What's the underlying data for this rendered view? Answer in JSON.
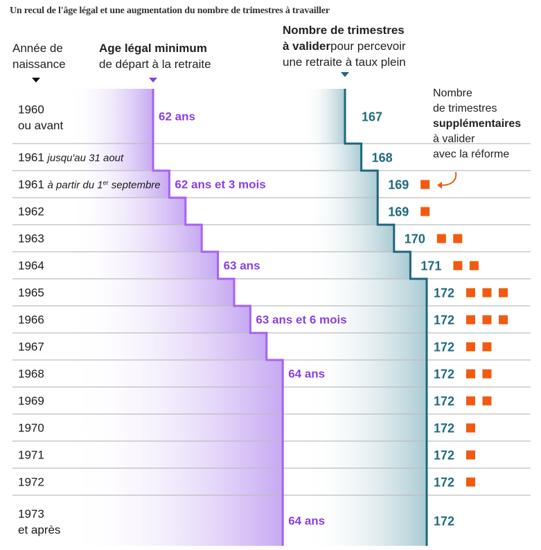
{
  "title": "Un recul de l'âge légal et une augmentation du nombre de trimestres à travailler",
  "headers": {
    "year": [
      "Année de",
      "naissance"
    ],
    "age_bold": "Age légal minimum",
    "age_rest": "de départ à la retraite",
    "trim_bold_1": "Nombre de trimestres",
    "trim_bold_2": "à valider",
    "trim_rest_1": "pour percevoir",
    "trim_rest_2": "une retraite à taux plein"
  },
  "note": {
    "line1": "Nombre",
    "line2": "de trimestres",
    "line3_bold": "supplémentaires",
    "line4": "à valider",
    "line5": "avec la réforme"
  },
  "colors": {
    "purple": "#a862ef",
    "purple_text": "#8b3fe0",
    "teal": "#1d6680",
    "teal_text": "#1e6a80",
    "orange": "#f25a0f",
    "grid": "#bdbdbd"
  },
  "chart_data": {
    "type": "table",
    "rows": [
      {
        "year": "1960",
        "year_note": "ou avant",
        "note_italic": false,
        "age_months": 744,
        "age_label": "62 ans",
        "trimestres": 167,
        "extra": 0
      },
      {
        "year": "1961",
        "year_note": "jusqu'au 31 aout",
        "note_italic": true,
        "age_months": 744,
        "age_label": "",
        "trimestres": 168,
        "extra": 0
      },
      {
        "year": "1961",
        "year_note": "à partir du 1er septembre",
        "note_italic": true,
        "age_months": 747,
        "age_label": "62 ans et 3 mois",
        "trimestres": 169,
        "extra": 1
      },
      {
        "year": "1962",
        "year_note": "",
        "note_italic": false,
        "age_months": 750,
        "age_label": "",
        "trimestres": 169,
        "extra": 1
      },
      {
        "year": "1963",
        "year_note": "",
        "note_italic": false,
        "age_months": 753,
        "age_label": "",
        "trimestres": 170,
        "extra": 2
      },
      {
        "year": "1964",
        "year_note": "",
        "note_italic": false,
        "age_months": 756,
        "age_label": "63 ans",
        "trimestres": 171,
        "extra": 2
      },
      {
        "year": "1965",
        "year_note": "",
        "note_italic": false,
        "age_months": 759,
        "age_label": "",
        "trimestres": 172,
        "extra": 3
      },
      {
        "year": "1966",
        "year_note": "",
        "note_italic": false,
        "age_months": 762,
        "age_label": "63 ans et 6 mois",
        "trimestres": 172,
        "extra": 3
      },
      {
        "year": "1967",
        "year_note": "",
        "note_italic": false,
        "age_months": 765,
        "age_label": "",
        "trimestres": 172,
        "extra": 2
      },
      {
        "year": "1968",
        "year_note": "",
        "note_italic": false,
        "age_months": 768,
        "age_label": "64 ans",
        "trimestres": 172,
        "extra": 2
      },
      {
        "year": "1969",
        "year_note": "",
        "note_italic": false,
        "age_months": 768,
        "age_label": "",
        "trimestres": 172,
        "extra": 2
      },
      {
        "year": "1970",
        "year_note": "",
        "note_italic": false,
        "age_months": 768,
        "age_label": "",
        "trimestres": 172,
        "extra": 1
      },
      {
        "year": "1971",
        "year_note": "",
        "note_italic": false,
        "age_months": 768,
        "age_label": "",
        "trimestres": 172,
        "extra": 1
      },
      {
        "year": "1972",
        "year_note": "",
        "note_italic": false,
        "age_months": 768,
        "age_label": "",
        "trimestres": 172,
        "extra": 1
      },
      {
        "year": "1973",
        "year_note": "et après",
        "note_italic": false,
        "age_months": 768,
        "age_label": "64 ans",
        "trimestres": 172,
        "extra": 0
      }
    ]
  }
}
